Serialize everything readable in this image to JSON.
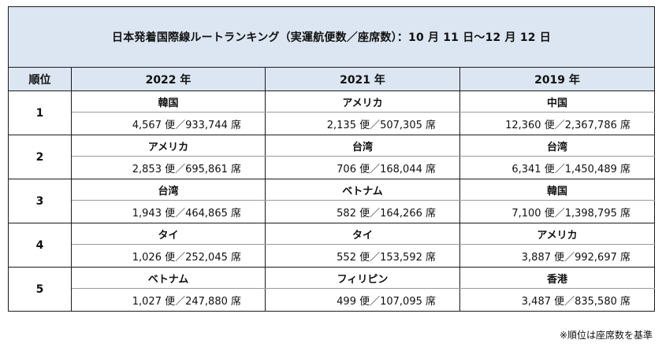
{
  "title": "日本発着国際線ルートランキング（実運航便数／座席数）：10 月 11 日〜12 月 12 日",
  "header": {
    "rank_label": "順位",
    "years": [
      "2022 年",
      "2021 年",
      "2019 年"
    ]
  },
  "rows": [
    {
      "rank": "1",
      "cells": [
        {
          "country": "韓国",
          "stats": "4,567 便／933,744 席"
        },
        {
          "country": "アメリカ",
          "stats": "2,135 便／507,305 席"
        },
        {
          "country": "中国",
          "stats": "12,360 便／2,367,786 席"
        }
      ]
    },
    {
      "rank": "2",
      "cells": [
        {
          "country": "アメリカ",
          "stats": "2,853 便／695,861 席"
        },
        {
          "country": "台湾",
          "stats": "706 便／168,044 席"
        },
        {
          "country": "台湾",
          "stats": "6,341 便／1,450,489 席"
        }
      ]
    },
    {
      "rank": "3",
      "cells": [
        {
          "country": "台湾",
          "stats": "1,943 便／464,865 席"
        },
        {
          "country": "ベトナム",
          "stats": "582 便／164,266 席"
        },
        {
          "country": "韓国",
          "stats": "7,100 便／1,398,795 席"
        }
      ]
    },
    {
      "rank": "4",
      "cells": [
        {
          "country": "タイ",
          "stats": "1,026 便／252,045 席"
        },
        {
          "country": "タイ",
          "stats": "552 便／153,592 席"
        },
        {
          "country": "アメリカ",
          "stats": "3,887 便／992,697 席"
        }
      ]
    },
    {
      "rank": "5",
      "cells": [
        {
          "country": "ベトナム",
          "stats": "1,027 便／247,880 席"
        },
        {
          "country": "フィリピン",
          "stats": "499 便／107,095 席"
        },
        {
          "country": "香港",
          "stats": "3,487 便／835,580 席"
        }
      ]
    }
  ],
  "footnote": "※順位は座席数を基準",
  "colors": {
    "header_background": "#dce6f2",
    "border": "#1a1a1a",
    "inner_divider": "#9a9a9a"
  }
}
